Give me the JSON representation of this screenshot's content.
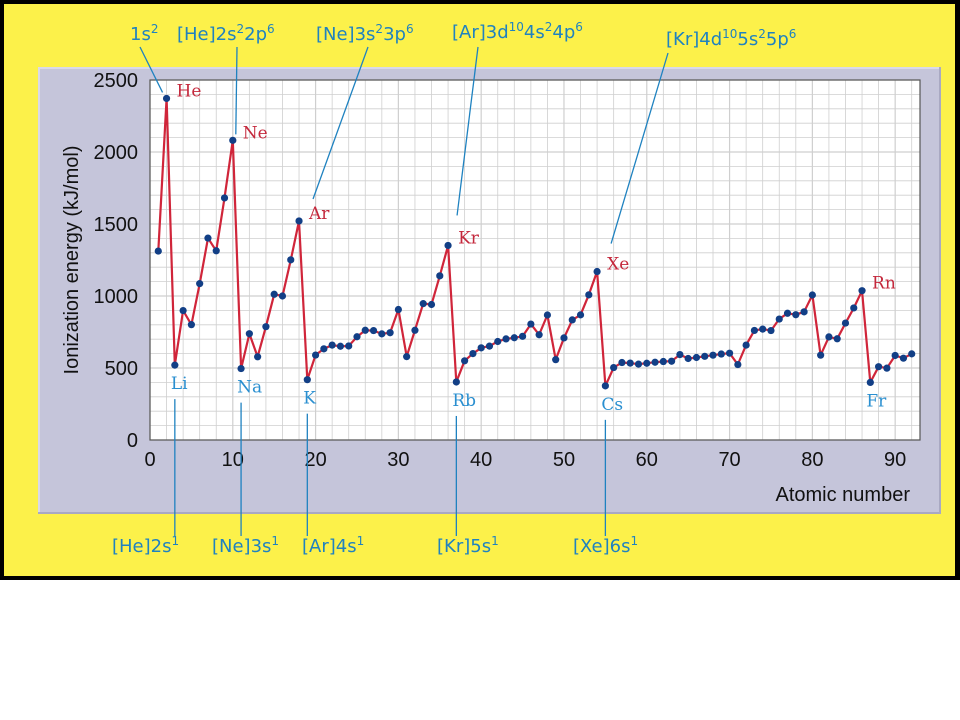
{
  "chart_data": {
    "type": "line",
    "xlabel": "Atomic number",
    "ylabel": "Ionization energy (kJ/mol)",
    "xlim": [
      0,
      93
    ],
    "ylim": [
      0,
      2500
    ],
    "x_ticks": [
      0,
      10,
      20,
      30,
      40,
      50,
      60,
      70,
      80,
      90
    ],
    "y_ticks": [
      0,
      500,
      1000,
      1500,
      2000,
      2500
    ],
    "grid": true,
    "line_color": "#d0253a",
    "marker_color": "#123f86",
    "series": [
      {
        "x": [
          1,
          2,
          3,
          4,
          5,
          6,
          7,
          8,
          9,
          10,
          11,
          12,
          13,
          14,
          15,
          16,
          17,
          18,
          19,
          20,
          21,
          22,
          23,
          24,
          25,
          26,
          27,
          28,
          29,
          30,
          31,
          32,
          33,
          34,
          35,
          36,
          37,
          38,
          39,
          40,
          41,
          42,
          43,
          44,
          45,
          46,
          47,
          48,
          49,
          50,
          51,
          52,
          53,
          54,
          55,
          56,
          57,
          58,
          59,
          60,
          61,
          62,
          63,
          64,
          65,
          66,
          67,
          68,
          69,
          70,
          71,
          72,
          73,
          74,
          75,
          76,
          77,
          78,
          79,
          80,
          81,
          82,
          83,
          84,
          85,
          86,
          87,
          88,
          89,
          90,
          91,
          92
        ],
        "values": [
          1312,
          2372,
          520,
          899,
          801,
          1086,
          1402,
          1314,
          1681,
          2081,
          496,
          738,
          578,
          787,
          1012,
          1000,
          1251,
          1521,
          419,
          590,
          633,
          659,
          651,
          653,
          717,
          762,
          760,
          737,
          745,
          906,
          579,
          762,
          947,
          941,
          1140,
          1351,
          403,
          550,
          600,
          640,
          652,
          684,
          702,
          710,
          720,
          805,
          731,
          868,
          558,
          709,
          834,
          869,
          1008,
          1170,
          376,
          503,
          538,
          534,
          527,
          533,
          540,
          545,
          547,
          593,
          566,
          573,
          581,
          589,
          597,
          603,
          524,
          659,
          761,
          770,
          760,
          840,
          880,
          870,
          890,
          1007,
          589,
          716,
          703,
          812,
          917,
          1037,
          400,
          509,
          499,
          587,
          568,
          598
        ]
      }
    ],
    "element_labels": [
      {
        "text": "He",
        "x": 2,
        "color": "#c4283c"
      },
      {
        "text": "Ne",
        "x": 10,
        "color": "#c4283c"
      },
      {
        "text": "Ar",
        "x": 18,
        "color": "#c4283c"
      },
      {
        "text": "Kr",
        "x": 36,
        "color": "#c4283c"
      },
      {
        "text": "Xe",
        "x": 54,
        "color": "#c4283c"
      },
      {
        "text": "Rn",
        "x": 86,
        "color": "#c4283c"
      },
      {
        "text": "Li",
        "x": 3,
        "color": "#2a8fd0"
      },
      {
        "text": "Na",
        "x": 11,
        "color": "#2a8fd0"
      },
      {
        "text": "K",
        "x": 19,
        "color": "#2a8fd0"
      },
      {
        "text": "Rb",
        "x": 37,
        "color": "#2a8fd0"
      },
      {
        "text": "Cs",
        "x": 55,
        "color": "#2a8fd0"
      },
      {
        "text": "Fr",
        "x": 87,
        "color": "#2a8fd0"
      }
    ],
    "annotations_top": [
      {
        "base": "1s",
        "sup": "2",
        "x": 2
      },
      {
        "base": "[He]2s",
        "sup": "2",
        "base2": "2p",
        "sup2": "6",
        "x": 10
      },
      {
        "base": "[Ne]3s",
        "sup": "2",
        "base2": "3p",
        "sup2": "6",
        "x": 18
      },
      {
        "base": "[Ar]3d",
        "sup": "10",
        "base2": "4s",
        "sup2": "2",
        "base3": "4p",
        "sup3": "6",
        "x": 36
      },
      {
        "base": "[Kr]4d",
        "sup": "10",
        "base2": "5s",
        "sup2": "2",
        "base3": "5p",
        "sup3": "6",
        "x": 54
      }
    ],
    "annotations_bottom": [
      {
        "base": "[He]2s",
        "sup": "1",
        "x": 3
      },
      {
        "base": "[Ne]3s",
        "sup": "1",
        "x": 11
      },
      {
        "base": "[Ar]4s",
        "sup": "1",
        "x": 19
      },
      {
        "base": "[Kr]5s",
        "sup": "1",
        "x": 37
      },
      {
        "base": "[Xe]6s",
        "sup": "1",
        "x": 55
      }
    ]
  }
}
